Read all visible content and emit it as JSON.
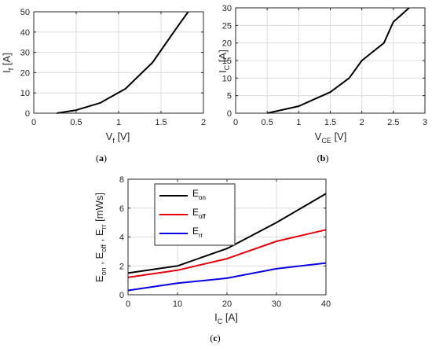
{
  "colors": {
    "black": "#000000",
    "red": "#e8000b",
    "blue": "#0a00e6",
    "grid": "#dcdcdc",
    "axis": "#262626"
  },
  "chart_data": [
    {
      "type": "line",
      "caption": "(a)",
      "xlabel": {
        "main": "V",
        "sub": "f",
        "unit": " [V]"
      },
      "ylabel": {
        "main": "I",
        "sub": "f",
        "unit": " [A]"
      },
      "xlim": [
        0,
        2
      ],
      "ylim": [
        0,
        50
      ],
      "xticks": [
        "0",
        "0.5",
        "1",
        "1.5",
        "2"
      ],
      "yticks": [
        "0",
        "10",
        "20",
        "30",
        "40",
        "50"
      ],
      "grid": true,
      "series": [
        {
          "x": [
            0.27,
            0.5,
            0.78,
            1.08,
            1.4,
            1.5,
            1.6,
            1.7,
            1.82
          ],
          "values": [
            0,
            1.5,
            5,
            12,
            25,
            31,
            37,
            43,
            50
          ]
        }
      ]
    },
    {
      "type": "line",
      "caption": "(b)",
      "xlabel": {
        "main": "V",
        "sub": "CE",
        "unit": " [V]"
      },
      "ylabel": {
        "main": "I",
        "sub": "C",
        "unit": " [A]"
      },
      "xlim": [
        0,
        3
      ],
      "ylim": [
        0,
        30
      ],
      "xticks": [
        "0",
        "0.5",
        "1",
        "1.5",
        "2",
        "2.5",
        "3"
      ],
      "yticks": [
        "0",
        "5",
        "10",
        "15",
        "20",
        "25",
        "30"
      ],
      "grid": true,
      "series": [
        {
          "x": [
            0.5,
            1.0,
            1.5,
            1.8,
            2.0,
            2.35,
            2.5,
            2.75
          ],
          "values": [
            0,
            2,
            6,
            10,
            15,
            20,
            26,
            30
          ]
        }
      ]
    },
    {
      "type": "line",
      "caption": "(c)",
      "xlabel": {
        "main": "I",
        "sub": "C",
        "unit": " [A]"
      },
      "ylabel_parts": [
        {
          "main": "E",
          "sub": "on",
          "sep": " , "
        },
        {
          "main": "E",
          "sub": "off",
          "sep": " , "
        },
        {
          "main": "E",
          "sub": "rr",
          "sep": " [mWs]"
        }
      ],
      "xlim": [
        0,
        40
      ],
      "ylim": [
        0,
        8
      ],
      "xticks": [
        "0",
        "10",
        "20",
        "30",
        "40"
      ],
      "yticks": [
        "0",
        "2",
        "4",
        "6",
        "8"
      ],
      "grid": true,
      "legend_position": "top-left",
      "x": [
        0,
        10,
        20,
        30,
        40
      ],
      "series": [
        {
          "main": "E",
          "sub": "on",
          "color": "#000000",
          "values": [
            1.5,
            2.0,
            3.2,
            5.0,
            7.0
          ]
        },
        {
          "main": "E",
          "sub": "off",
          "color": "#e8000b",
          "values": [
            1.2,
            1.7,
            2.5,
            3.7,
            4.5
          ]
        },
        {
          "main": "E",
          "sub": "rr",
          "color": "#0a00e6",
          "values": [
            0.3,
            0.8,
            1.15,
            1.8,
            2.2
          ]
        }
      ]
    }
  ]
}
